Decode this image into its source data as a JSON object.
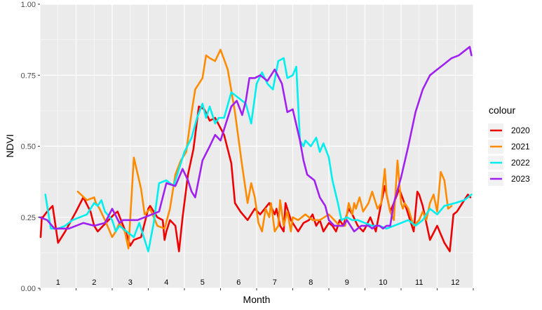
{
  "chart_data": {
    "type": "line",
    "title": "",
    "xlabel": "Month",
    "ylabel": "NDVI",
    "ylim": [
      0,
      1
    ],
    "xlim": [
      0,
      12
    ],
    "yticks": [
      "0.00",
      "0.25",
      "0.50",
      "0.75",
      "1.00"
    ],
    "month_labels": [
      "1",
      "2",
      "3",
      "4",
      "5",
      "6",
      "7",
      "8",
      "9",
      "10",
      "11",
      "12"
    ],
    "grid": true,
    "legend": {
      "title": "colour",
      "position": "right"
    },
    "series": [
      {
        "name": "2020",
        "color": "#ee0000",
        "x": [
          0.02,
          0.05,
          0.08,
          0.2,
          0.35,
          0.5,
          0.7,
          1.0,
          1.2,
          1.4,
          1.5,
          1.6,
          1.9,
          2.05,
          2.15,
          2.4,
          2.5,
          2.6,
          2.8,
          3.0,
          3.05,
          3.25,
          3.4,
          3.45,
          3.5,
          3.6,
          3.75,
          3.85,
          3.95,
          4.1,
          4.25,
          4.4,
          4.55,
          4.7,
          4.85,
          5.1,
          5.3,
          5.4,
          5.55,
          5.75,
          5.95,
          6.1,
          6.35,
          6.5,
          6.55,
          6.65,
          6.75,
          6.8,
          6.95,
          7.05,
          7.15,
          7.3,
          7.45,
          7.55,
          7.65,
          7.75,
          7.85,
          8.0,
          8.1,
          8.2,
          8.3,
          8.4,
          8.55,
          8.65,
          8.8,
          8.95,
          9.0,
          9.15,
          9.3,
          9.45,
          9.55,
          9.7,
          9.8,
          9.95,
          10.15,
          10.35,
          10.45,
          10.5,
          10.6,
          10.8,
          11.0,
          11.2,
          11.35,
          11.45,
          11.55,
          11.7,
          11.85,
          11.92
        ],
        "y": [
          0.18,
          0.25,
          0.25,
          0.27,
          0.29,
          0.16,
          0.2,
          0.27,
          0.32,
          0.27,
          0.22,
          0.2,
          0.24,
          0.26,
          0.27,
          0.19,
          0.15,
          0.17,
          0.18,
          0.28,
          0.29,
          0.25,
          0.24,
          0.17,
          0.2,
          0.24,
          0.22,
          0.13,
          0.25,
          0.4,
          0.49,
          0.64,
          0.63,
          0.59,
          0.6,
          0.54,
          0.44,
          0.3,
          0.27,
          0.24,
          0.28,
          0.26,
          0.3,
          0.26,
          0.28,
          0.22,
          0.2,
          0.3,
          0.24,
          0.22,
          0.2,
          0.23,
          0.24,
          0.26,
          0.22,
          0.24,
          0.2,
          0.23,
          0.22,
          0.2,
          0.24,
          0.22,
          0.28,
          0.26,
          0.22,
          0.2,
          0.21,
          0.25,
          0.2,
          0.3,
          0.36,
          0.27,
          0.3,
          0.35,
          0.28,
          0.2,
          0.34,
          0.33,
          0.29,
          0.17,
          0.22,
          0.16,
          0.13,
          0.26,
          0.27,
          0.3,
          0.33,
          0.32
        ]
      },
      {
        "name": "2021",
        "color": "#ff8c00",
        "x": [
          1.05,
          1.3,
          1.5,
          1.55,
          1.65,
          1.8,
          2.0,
          2.1,
          2.2,
          2.35,
          2.45,
          2.6,
          2.8,
          2.9,
          3.05,
          3.25,
          3.45,
          3.6,
          3.75,
          3.9,
          4.05,
          4.2,
          4.3,
          4.4,
          4.5,
          4.6,
          4.7,
          4.85,
          5.0,
          5.2,
          5.4,
          5.6,
          5.75,
          5.85,
          5.95,
          6.05,
          6.15,
          6.25,
          6.35,
          6.4,
          6.5,
          6.6,
          6.65,
          6.75,
          6.85,
          6.95,
          7.0,
          7.15,
          7.35,
          7.55,
          7.75,
          8.0,
          8.15,
          8.3,
          8.45,
          8.55,
          8.65,
          8.7,
          8.75,
          8.85,
          8.95,
          9.0,
          9.1,
          9.2,
          9.35,
          9.45,
          9.55,
          9.6,
          9.7,
          9.8,
          9.9,
          10.0,
          10.05,
          10.1,
          10.2,
          10.35,
          10.5,
          10.6,
          10.7,
          10.8,
          10.9,
          11.0,
          11.1,
          11.2,
          11.3,
          11.4
        ],
        "y": [
          0.34,
          0.31,
          0.32,
          0.3,
          0.28,
          0.24,
          0.18,
          0.2,
          0.23,
          0.2,
          0.14,
          0.46,
          0.35,
          0.26,
          0.28,
          0.22,
          0.21,
          0.28,
          0.4,
          0.45,
          0.48,
          0.62,
          0.7,
          0.72,
          0.74,
          0.82,
          0.81,
          0.8,
          0.84,
          0.77,
          0.62,
          0.43,
          0.3,
          0.37,
          0.32,
          0.23,
          0.2,
          0.28,
          0.25,
          0.3,
          0.2,
          0.22,
          0.31,
          0.22,
          0.27,
          0.2,
          0.25,
          0.24,
          0.26,
          0.24,
          0.24,
          0.26,
          0.24,
          0.22,
          0.22,
          0.3,
          0.26,
          0.3,
          0.28,
          0.32,
          0.27,
          0.28,
          0.3,
          0.34,
          0.28,
          0.3,
          0.42,
          0.33,
          0.27,
          0.24,
          0.45,
          0.3,
          0.28,
          0.3,
          0.28,
          0.22,
          0.24,
          0.27,
          0.24,
          0.3,
          0.33,
          0.27,
          0.41,
          0.38,
          0.28,
          0.29
        ]
      },
      {
        "name": "2022",
        "color": "#00eeee",
        "x": [
          0.15,
          0.3,
          0.5,
          0.7,
          0.9,
          1.1,
          1.3,
          1.5,
          1.6,
          1.7,
          1.8,
          2.0,
          2.1,
          2.2,
          2.4,
          2.6,
          2.75,
          2.85,
          3.0,
          3.15,
          3.3,
          3.5,
          3.7,
          3.85,
          4.0,
          4.2,
          4.35,
          4.5,
          4.6,
          4.7,
          4.85,
          4.95,
          5.1,
          5.3,
          5.4,
          5.5,
          5.7,
          5.85,
          6.0,
          6.15,
          6.3,
          6.45,
          6.6,
          6.75,
          6.85,
          7.0,
          7.1,
          7.2,
          7.3,
          7.35,
          7.5,
          7.65,
          7.75,
          7.85,
          8.0,
          8.1,
          8.25,
          8.35,
          8.5,
          8.65,
          8.8,
          9.0,
          9.2,
          9.4,
          9.6,
          9.8,
          10.0,
          10.2,
          10.4,
          10.6,
          10.8,
          11.0,
          11.2,
          11.5,
          11.75,
          11.95
        ],
        "y": [
          0.33,
          0.21,
          0.21,
          0.22,
          0.24,
          0.25,
          0.26,
          0.3,
          0.29,
          0.31,
          0.27,
          0.24,
          0.2,
          0.22,
          0.2,
          0.18,
          0.23,
          0.19,
          0.13,
          0.23,
          0.37,
          0.38,
          0.36,
          0.42,
          0.48,
          0.53,
          0.6,
          0.65,
          0.6,
          0.64,
          0.58,
          0.6,
          0.6,
          0.69,
          0.68,
          0.67,
          0.65,
          0.58,
          0.72,
          0.76,
          0.72,
          0.7,
          0.8,
          0.81,
          0.74,
          0.75,
          0.78,
          0.52,
          0.5,
          0.52,
          0.5,
          0.53,
          0.48,
          0.51,
          0.46,
          0.38,
          0.3,
          0.24,
          0.25,
          0.24,
          0.24,
          0.23,
          0.22,
          0.22,
          0.21,
          0.22,
          0.23,
          0.24,
          0.22,
          0.24,
          0.28,
          0.26,
          0.29,
          0.3,
          0.31,
          0.33
        ]
      },
      {
        "name": "2023",
        "color": "#a020f0",
        "x": [
          0.0,
          0.2,
          0.4,
          0.6,
          0.8,
          1.0,
          1.2,
          1.5,
          1.8,
          2.0,
          2.2,
          2.3,
          2.5,
          2.7,
          2.9,
          3.1,
          3.3,
          3.5,
          3.75,
          3.95,
          4.1,
          4.2,
          4.3,
          4.5,
          4.7,
          4.85,
          5.0,
          5.15,
          5.3,
          5.45,
          5.6,
          5.7,
          5.8,
          5.95,
          6.1,
          6.3,
          6.5,
          6.7,
          6.85,
          7.0,
          7.2,
          7.3,
          7.4,
          7.6,
          7.75,
          7.9,
          8.0,
          8.15,
          8.25,
          8.4,
          8.5,
          8.6,
          8.7,
          8.8,
          8.9,
          9.0,
          9.1,
          9.2,
          9.3,
          9.4,
          9.5,
          9.6,
          9.7,
          9.8,
          10.0,
          10.2,
          10.4,
          10.6,
          10.8,
          11.0,
          11.2,
          11.4,
          11.6,
          11.8,
          11.9,
          11.95
        ],
        "y": [
          0.25,
          0.24,
          0.21,
          0.21,
          0.21,
          0.22,
          0.23,
          0.22,
          0.23,
          0.28,
          0.23,
          0.24,
          0.24,
          0.24,
          0.25,
          0.26,
          0.27,
          0.37,
          0.36,
          0.42,
          0.38,
          0.34,
          0.32,
          0.45,
          0.5,
          0.54,
          0.52,
          0.58,
          0.64,
          0.66,
          0.61,
          0.66,
          0.74,
          0.74,
          0.75,
          0.73,
          0.77,
          0.72,
          0.62,
          0.63,
          0.52,
          0.45,
          0.4,
          0.38,
          0.32,
          0.29,
          0.24,
          0.22,
          0.22,
          0.22,
          0.24,
          0.22,
          0.2,
          0.21,
          0.22,
          0.22,
          0.22,
          0.21,
          0.22,
          0.22,
          0.21,
          0.22,
          0.22,
          0.3,
          0.39,
          0.5,
          0.62,
          0.7,
          0.75,
          0.77,
          0.79,
          0.81,
          0.82,
          0.84,
          0.85,
          0.82
        ]
      }
    ]
  }
}
